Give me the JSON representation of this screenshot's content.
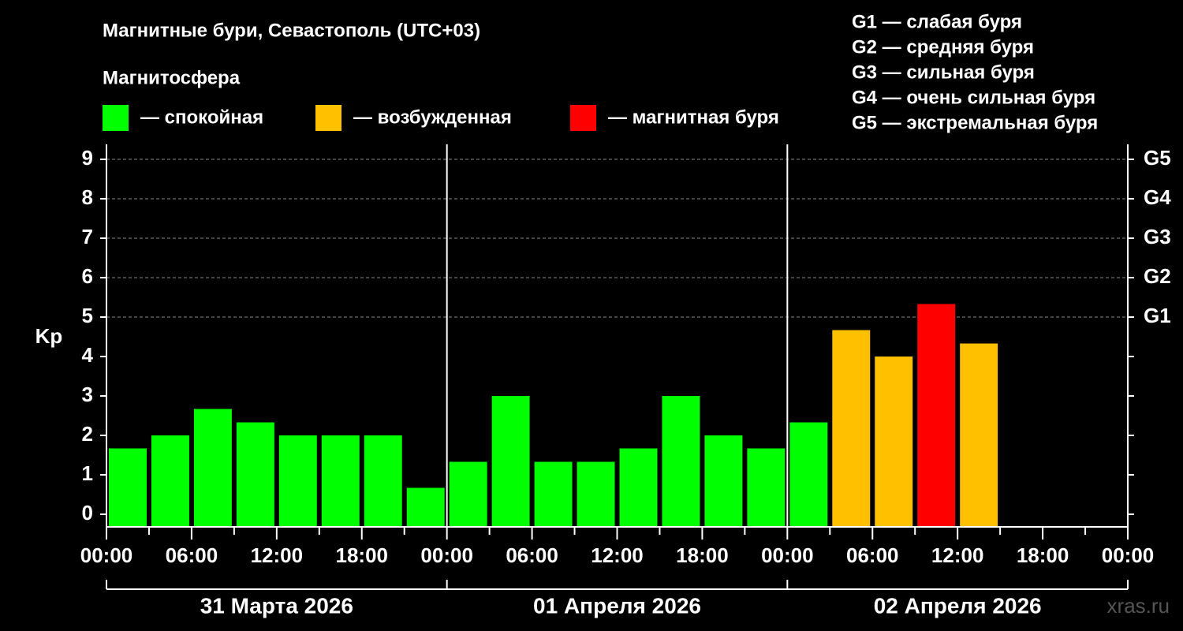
{
  "chart_data": {
    "type": "bar",
    "title": "Магнитные бури, Севастополь (UTC+03)",
    "legend_title": "Магнитосфера",
    "legend": [
      {
        "color": "#00ff00",
        "label": "— спокойная"
      },
      {
        "color": "#ffc000",
        "label": "— возбужденная"
      },
      {
        "color": "#ff0000",
        "label": "— магнитная буря"
      }
    ],
    "storm_notes": [
      "G1 — слабая буря",
      "G2 — средняя буря",
      "G3 — сильная буря",
      "G4 — очень сильная буря",
      "G5 — экстремальная буря"
    ],
    "y_label": "Kp",
    "x": [
      0,
      3,
      6,
      9,
      12,
      15,
      18,
      21,
      24,
      27,
      30,
      33,
      36,
      39,
      42,
      45,
      48,
      51,
      54,
      57,
      60
    ],
    "values": [
      1.67,
      2,
      2.67,
      2.33,
      2,
      2,
      2,
      0.67,
      1.33,
      3,
      1.33,
      1.33,
      1.67,
      3,
      2,
      1.67,
      2.33,
      4.67,
      4,
      5.33,
      4.33
    ],
    "colors": [
      "#00ff00",
      "#00ff00",
      "#00ff00",
      "#00ff00",
      "#00ff00",
      "#00ff00",
      "#00ff00",
      "#00ff00",
      "#00ff00",
      "#00ff00",
      "#00ff00",
      "#00ff00",
      "#00ff00",
      "#00ff00",
      "#00ff00",
      "#00ff00",
      "#00ff00",
      "#ffc000",
      "#ffc000",
      "#ff0000",
      "#ffc000"
    ],
    "xlim": [
      0,
      72
    ],
    "xticks": [
      {
        "value": 0,
        "label": "00:00"
      },
      {
        "value": 6,
        "label": "06:00"
      },
      {
        "value": 12,
        "label": "12:00"
      },
      {
        "value": 18,
        "label": "18:00"
      },
      {
        "value": 24,
        "label": "00:00"
      },
      {
        "value": 30,
        "label": "06:00"
      },
      {
        "value": 36,
        "label": "12:00"
      },
      {
        "value": 42,
        "label": "18:00"
      },
      {
        "value": 48,
        "label": "00:00"
      },
      {
        "value": 54,
        "label": "06:00"
      },
      {
        "value": 60,
        "label": "12:00"
      },
      {
        "value": 66,
        "label": "18:00"
      },
      {
        "value": 72,
        "label": "00:00"
      }
    ],
    "days": [
      "31 Марта 2026",
      "01 Апреля 2026",
      "02 Апреля 2026"
    ],
    "ylim": [
      -0.32,
      9.38
    ],
    "yticks": [
      0,
      1,
      2,
      3,
      4,
      5,
      6,
      7,
      8,
      9
    ],
    "y2lim": [
      -0.32,
      9.38
    ],
    "y2ticks": [
      {
        "value": 5,
        "label": "G1"
      },
      {
        "value": 6,
        "label": "G2"
      },
      {
        "value": 7,
        "label": "G3"
      },
      {
        "value": 8,
        "label": "G4"
      },
      {
        "value": 9,
        "label": "G5"
      }
    ],
    "grid": true,
    "watermark": "xras.ru"
  }
}
